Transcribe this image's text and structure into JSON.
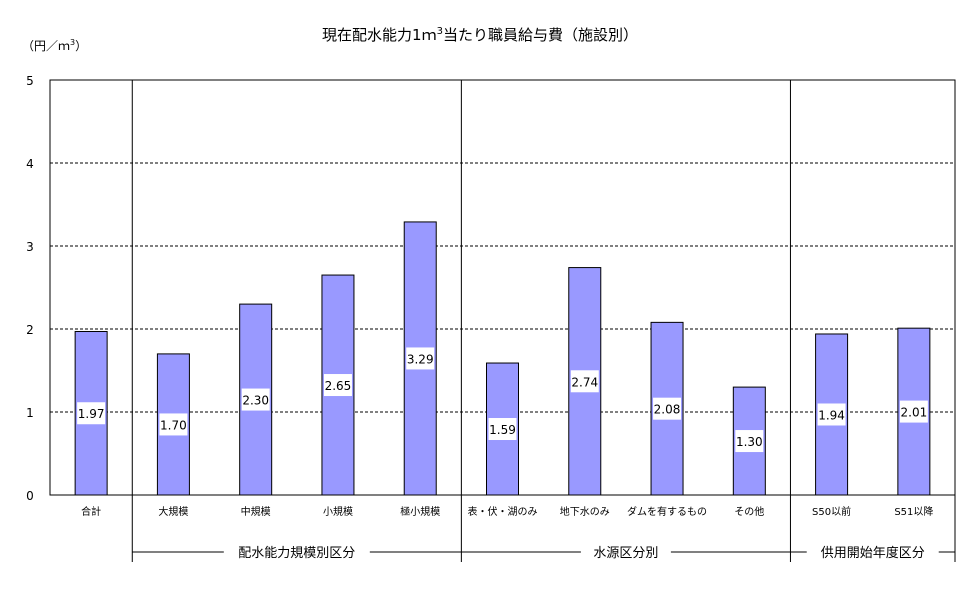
{
  "chart_data": {
    "type": "bar",
    "title": "現在配水能力1ｍ",
    "title_sup": "3",
    "title_suffix": "当たり職員給与費（施設別）",
    "ylabel_prefix": "（円／ｍ",
    "ylabel_sup": "3",
    "ylabel_suffix": "）",
    "ylim": [
      0,
      5
    ],
    "yticks": [
      "0",
      "1",
      "2",
      "3",
      "4",
      "5"
    ],
    "grid": true,
    "bar_color": "#9999FF",
    "categories": [
      "合計",
      "大規模",
      "中規模",
      "小規模",
      "極小規模",
      "表・伏・湖のみ",
      "地下水のみ",
      "ダムを有するもの",
      "その他",
      "S50以前",
      "S51以降"
    ],
    "values": [
      1.97,
      1.7,
      2.3,
      2.65,
      3.29,
      1.59,
      2.74,
      2.08,
      1.3,
      1.94,
      2.01
    ],
    "value_labels": [
      "1.97",
      "1.70",
      "2.30",
      "2.65",
      "3.29",
      "1.59",
      "2.74",
      "2.08",
      "1.30",
      "1.94",
      "2.01"
    ],
    "groups": [
      {
        "label": "配水能力規模別区分",
        "start": 1,
        "end": 4
      },
      {
        "label": "水源区分別",
        "start": 5,
        "end": 8
      },
      {
        "label": "供用開始年度区分",
        "start": 9,
        "end": 10
      }
    ]
  }
}
